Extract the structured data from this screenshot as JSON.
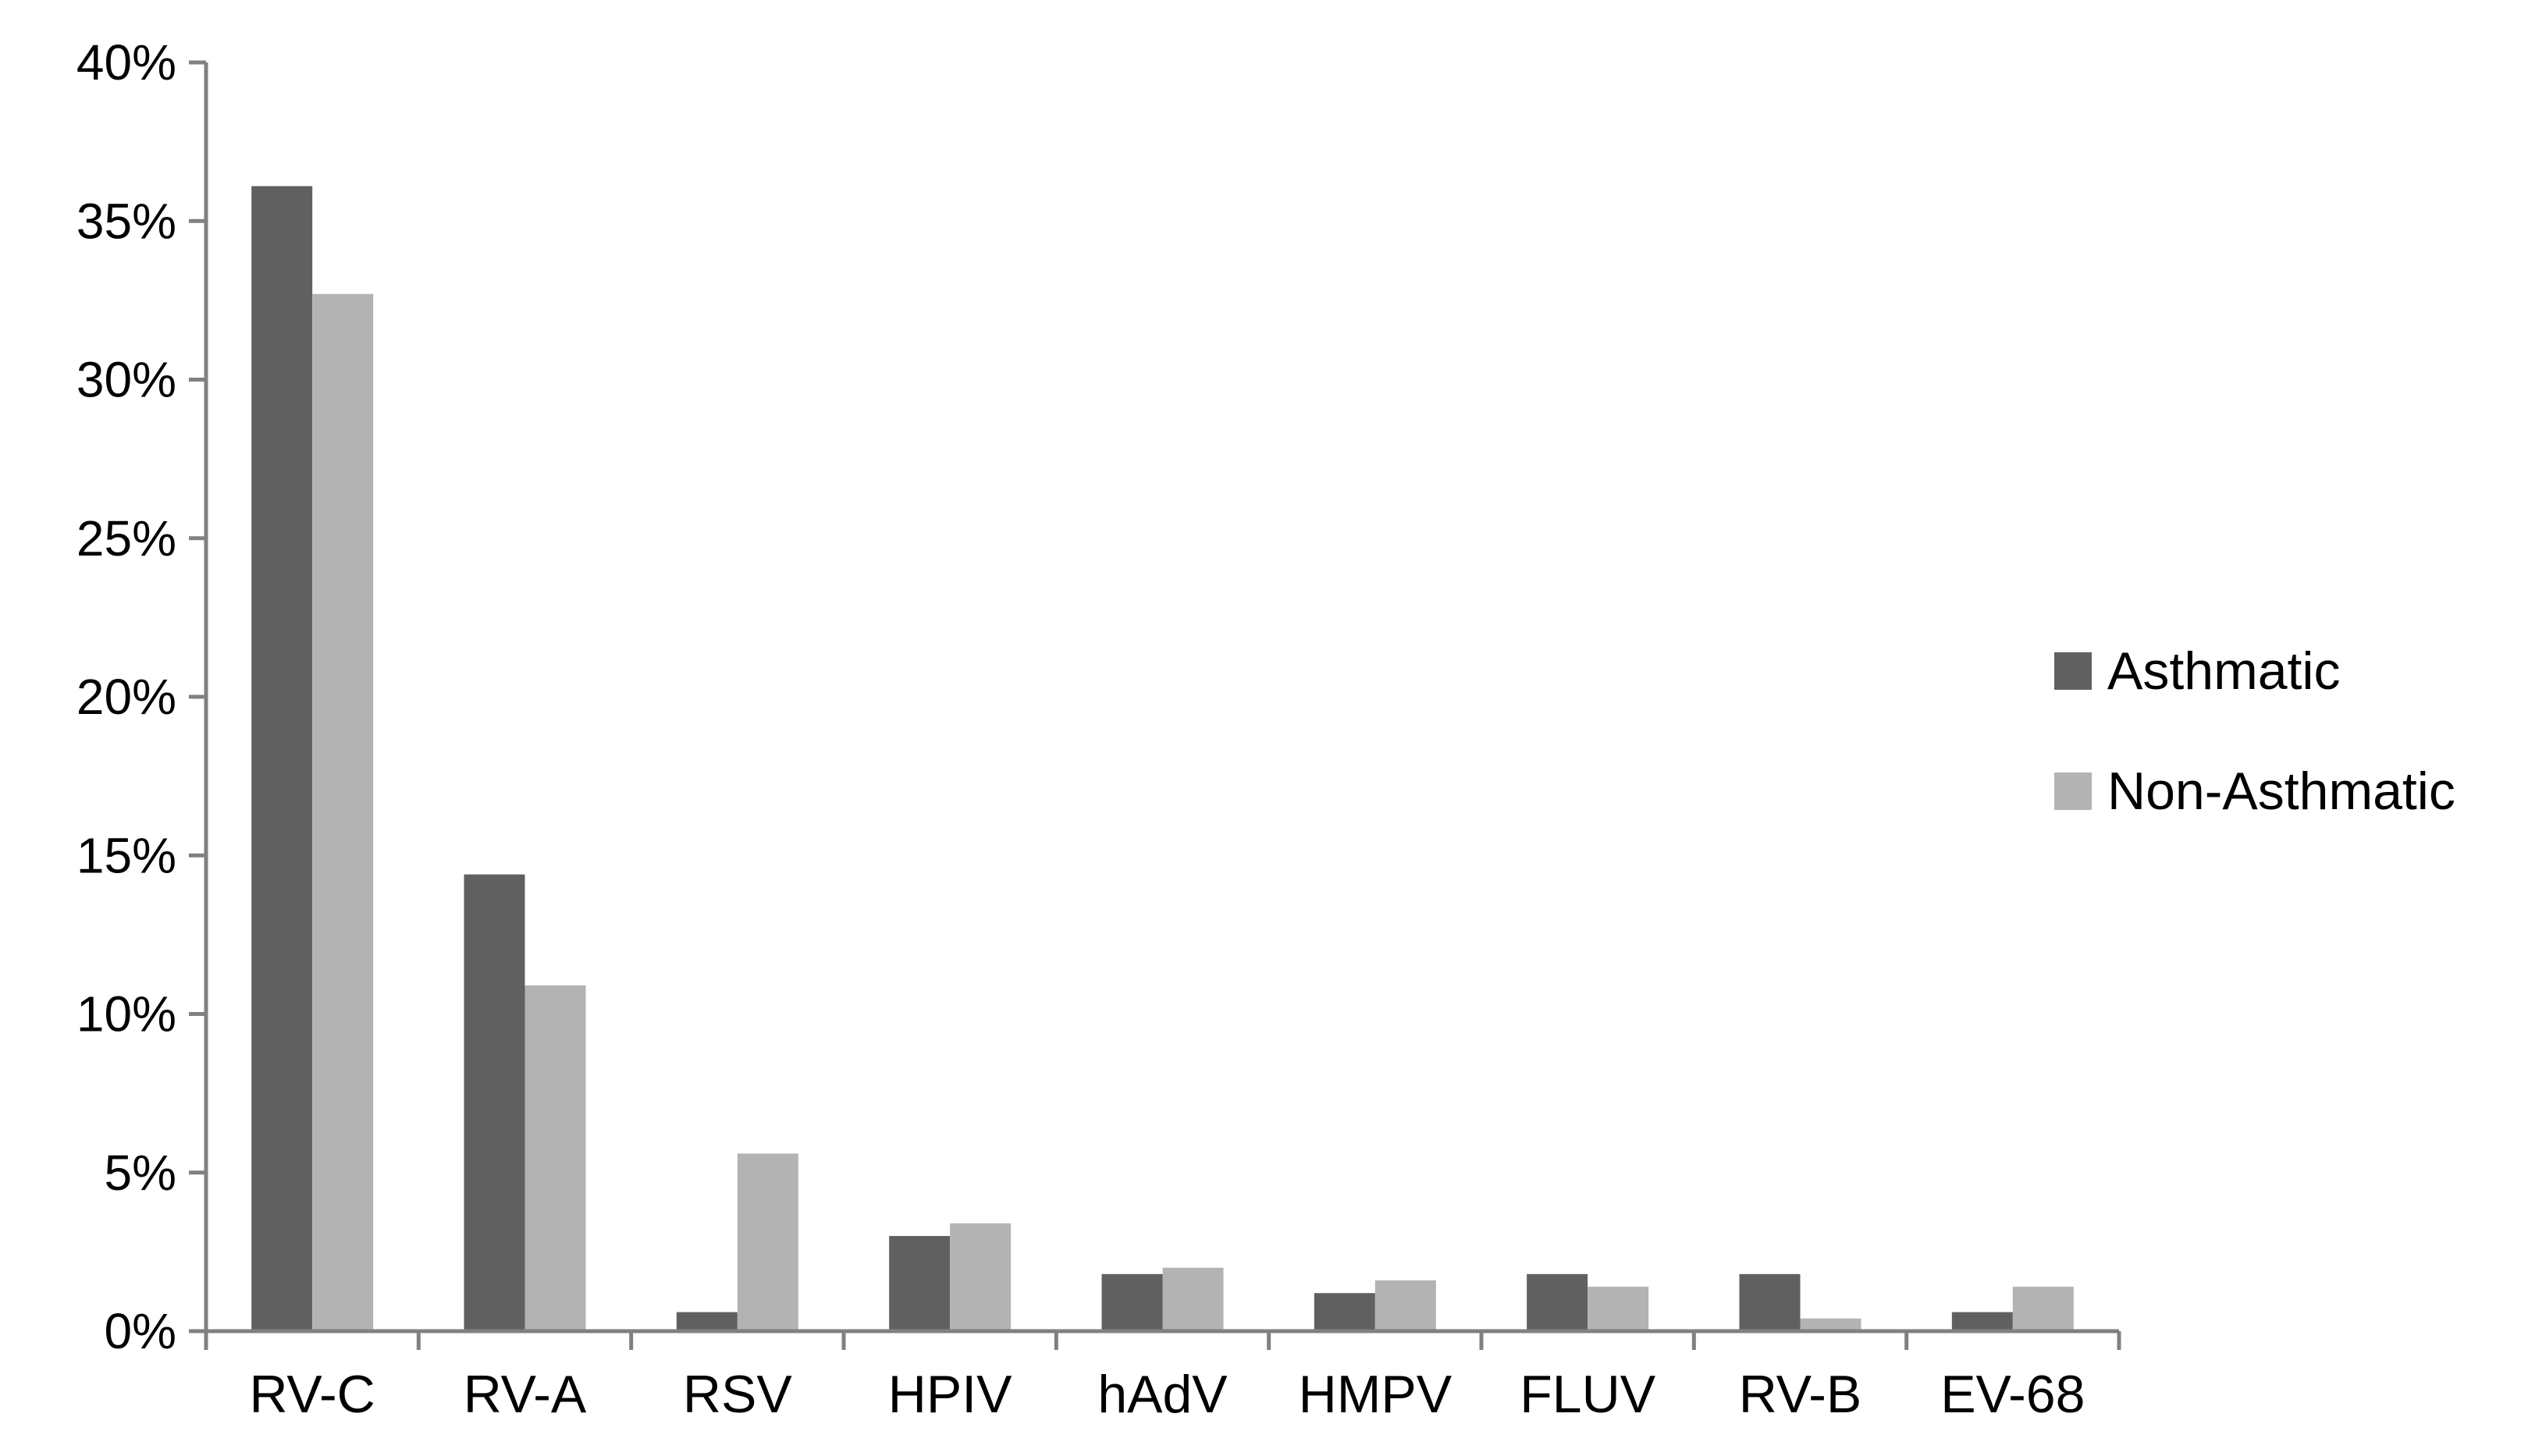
{
  "chart_data": {
    "type": "bar",
    "title": "",
    "xlabel": "",
    "ylabel": "",
    "ylim": [
      0,
      40
    ],
    "y_ticks": [
      0,
      5,
      10,
      15,
      20,
      25,
      30,
      35,
      40
    ],
    "y_tick_format": "{v}%",
    "categories": [
      "RV-C",
      "RV-A",
      "RSV",
      "HPIV",
      "hAdV",
      "HMPV",
      "FLUV",
      "RV-B",
      "EV-68"
    ],
    "series": [
      {
        "name": "Asthmatic",
        "color": "#606060",
        "values": [
          36.1,
          14.4,
          0.6,
          3.0,
          1.8,
          1.2,
          1.8,
          1.8,
          0.6
        ]
      },
      {
        "name": "Non-Asthmatic",
        "color": "#b3b3b3",
        "values": [
          32.7,
          10.9,
          5.6,
          3.4,
          2.0,
          1.6,
          1.4,
          0.4,
          1.4
        ]
      }
    ],
    "grid": false,
    "legend_position": "right"
  }
}
